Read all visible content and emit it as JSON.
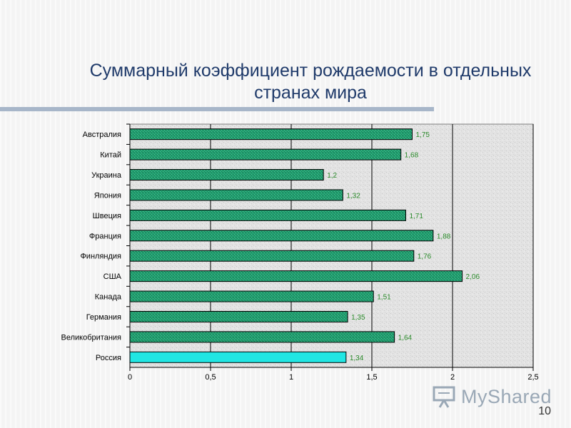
{
  "slide": {
    "title": "Суммарный коэффициент рождаемости в отдельных странах мира",
    "page_number": "10",
    "watermark": "MyShared"
  },
  "colors": {
    "bar": "#1f9a6c",
    "highlight_bar": "#21e6e3",
    "value_label": "#2a8a2a",
    "title": "#1f3a6a"
  },
  "chart_data": {
    "type": "bar",
    "orientation": "horizontal",
    "categories": [
      "Австралия",
      "Китай",
      "Украина",
      "Япония",
      "Швеция",
      "Франция",
      "Финляндия",
      "США",
      "Канада",
      "Германия",
      "Великобритания",
      "Россия"
    ],
    "values": [
      1.75,
      1.68,
      1.2,
      1.32,
      1.71,
      1.88,
      1.76,
      2.06,
      1.51,
      1.35,
      1.64,
      1.34
    ],
    "value_labels": [
      "1,75",
      "1,68",
      "1,2",
      "1,32",
      "1,71",
      "1,88",
      "1,76",
      "2,06",
      "1,51",
      "1,35",
      "1,64",
      "1,34"
    ],
    "highlight": "Россия",
    "xlim": [
      0,
      2.5
    ],
    "xticks": [
      0,
      0.5,
      1,
      1.5,
      2,
      2.5
    ],
    "xtick_labels": [
      "0",
      "0,5",
      "1",
      "1,5",
      "2",
      "2,5"
    ],
    "grid": true,
    "legend": "none",
    "xlabel": "",
    "ylabel": ""
  }
}
